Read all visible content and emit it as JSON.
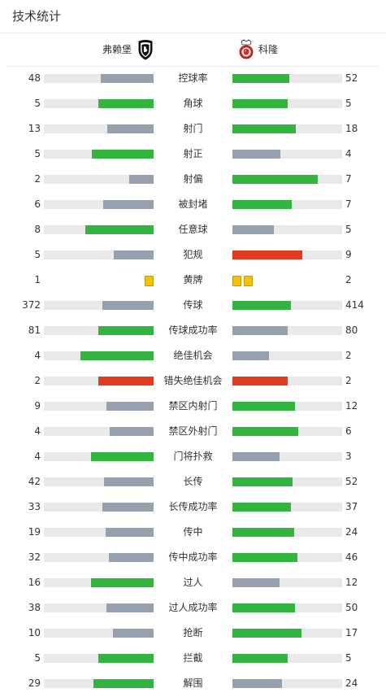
{
  "header": {
    "title": "技术统计"
  },
  "teams": {
    "home": {
      "name": "弗赖堡",
      "logo_icon": "freiburg-crest-icon"
    },
    "away": {
      "name": "科隆",
      "logo_icon": "koln-crest-icon"
    }
  },
  "colors": {
    "win": "#33b33f",
    "lose": "#97a0ae",
    "danger": "#e03b1f",
    "track": "#e9e9e9",
    "card": "#f3c10a"
  },
  "stats": [
    {
      "label": "控球率",
      "home": "48",
      "away": "52",
      "home_frac": 0.48,
      "away_frac": 0.52,
      "home_color": "lose",
      "away_color": "win"
    },
    {
      "label": "角球",
      "home": "5",
      "away": "5",
      "home_frac": 0.5,
      "away_frac": 0.5,
      "home_color": "win",
      "away_color": "win"
    },
    {
      "label": "射门",
      "home": "13",
      "away": "18",
      "home_frac": 0.42,
      "away_frac": 0.58,
      "home_color": "lose",
      "away_color": "win"
    },
    {
      "label": "射正",
      "home": "5",
      "away": "4",
      "home_frac": 0.56,
      "away_frac": 0.44,
      "home_color": "win",
      "away_color": "lose"
    },
    {
      "label": "射偏",
      "home": "2",
      "away": "7",
      "home_frac": 0.22,
      "away_frac": 0.78,
      "home_color": "lose",
      "away_color": "win"
    },
    {
      "label": "被封堵",
      "home": "6",
      "away": "7",
      "home_frac": 0.46,
      "away_frac": 0.54,
      "home_color": "lose",
      "away_color": "win"
    },
    {
      "label": "任意球",
      "home": "8",
      "away": "5",
      "home_frac": 0.62,
      "away_frac": 0.38,
      "home_color": "win",
      "away_color": "lose"
    },
    {
      "label": "犯规",
      "home": "5",
      "away": "9",
      "home_frac": 0.36,
      "away_frac": 0.64,
      "home_color": "lose",
      "away_color": "danger"
    },
    {
      "label": "黄牌",
      "home": "1",
      "away": "2",
      "home_cards": 1,
      "away_cards": 2
    },
    {
      "label": "传球",
      "home": "372",
      "away": "414",
      "home_frac": 0.47,
      "away_frac": 0.53,
      "home_color": "lose",
      "away_color": "win"
    },
    {
      "label": "传球成功率",
      "home": "81",
      "away": "80",
      "home_frac": 0.5,
      "away_frac": 0.5,
      "home_color": "win",
      "away_color": "lose"
    },
    {
      "label": "绝佳机会",
      "home": "4",
      "away": "2",
      "home_frac": 0.67,
      "away_frac": 0.33,
      "home_color": "win",
      "away_color": "lose"
    },
    {
      "label": "错失绝佳机会",
      "home": "2",
      "away": "2",
      "home_frac": 0.5,
      "away_frac": 0.5,
      "home_color": "danger",
      "away_color": "danger"
    },
    {
      "label": "禁区内射门",
      "home": "9",
      "away": "12",
      "home_frac": 0.43,
      "away_frac": 0.57,
      "home_color": "lose",
      "away_color": "win"
    },
    {
      "label": "禁区外射门",
      "home": "4",
      "away": "6",
      "home_frac": 0.4,
      "away_frac": 0.6,
      "home_color": "lose",
      "away_color": "win"
    },
    {
      "label": "门将扑救",
      "home": "4",
      "away": "3",
      "home_frac": 0.57,
      "away_frac": 0.43,
      "home_color": "win",
      "away_color": "lose"
    },
    {
      "label": "长传",
      "home": "42",
      "away": "52",
      "home_frac": 0.45,
      "away_frac": 0.55,
      "home_color": "lose",
      "away_color": "win"
    },
    {
      "label": "长传成功率",
      "home": "33",
      "away": "37",
      "home_frac": 0.47,
      "away_frac": 0.53,
      "home_color": "lose",
      "away_color": "win"
    },
    {
      "label": "传中",
      "home": "19",
      "away": "24",
      "home_frac": 0.44,
      "away_frac": 0.56,
      "home_color": "lose",
      "away_color": "win"
    },
    {
      "label": "传中成功率",
      "home": "32",
      "away": "46",
      "home_frac": 0.41,
      "away_frac": 0.59,
      "home_color": "lose",
      "away_color": "win"
    },
    {
      "label": "过人",
      "home": "16",
      "away": "12",
      "home_frac": 0.57,
      "away_frac": 0.43,
      "home_color": "win",
      "away_color": "lose"
    },
    {
      "label": "过人成功率",
      "home": "38",
      "away": "50",
      "home_frac": 0.43,
      "away_frac": 0.57,
      "home_color": "lose",
      "away_color": "win"
    },
    {
      "label": "抢断",
      "home": "10",
      "away": "17",
      "home_frac": 0.37,
      "away_frac": 0.63,
      "home_color": "lose",
      "away_color": "win"
    },
    {
      "label": "拦截",
      "home": "5",
      "away": "5",
      "home_frac": 0.5,
      "away_frac": 0.5,
      "home_color": "win",
      "away_color": "win"
    },
    {
      "label": "解围",
      "home": "29",
      "away": "24",
      "home_frac": 0.55,
      "away_frac": 0.45,
      "home_color": "win",
      "away_color": "lose"
    }
  ]
}
